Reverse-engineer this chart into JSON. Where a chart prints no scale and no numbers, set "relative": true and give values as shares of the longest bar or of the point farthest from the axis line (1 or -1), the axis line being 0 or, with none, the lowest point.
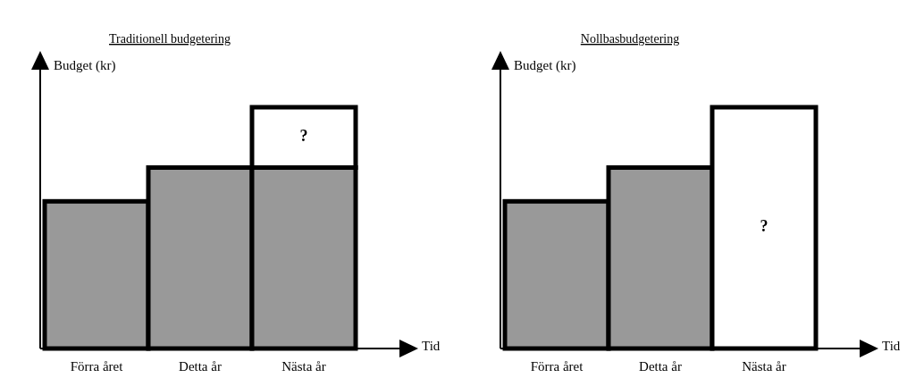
{
  "chart_data": [
    {
      "type": "bar",
      "title": "Traditionell budgetering",
      "xlabel": "Tid",
      "ylabel": "Budget (kr)",
      "categories": [
        "Förra året",
        "Detta år",
        "Nästa år"
      ],
      "stacked": true,
      "relative": true,
      "series": [
        {
          "color": "#999999",
          "values": [
            0.61,
            0.75,
            0.75
          ]
        },
        {
          "color": "#ffffff",
          "values": [
            null,
            null,
            0.25
          ]
        }
      ],
      "annotations": [
        "?"
      ]
    },
    {
      "type": "bar",
      "title": "Nollbasbudgetering",
      "xlabel": "Tid",
      "ylabel": "Budget (kr)",
      "categories": [
        "Förra året",
        "Detta år",
        "Nästa år"
      ],
      "stacked": true,
      "relative": true,
      "series": [
        {
          "color": "#999999",
          "values": [
            0.61,
            0.75,
            null
          ]
        },
        {
          "color": "#ffffff",
          "values": [
            null,
            null,
            1
          ]
        }
      ],
      "annotations": [
        "?"
      ]
    }
  ]
}
